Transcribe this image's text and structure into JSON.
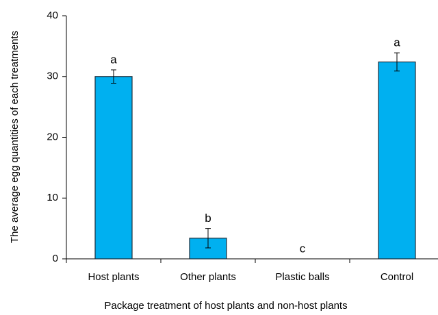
{
  "chart_data": {
    "type": "bar",
    "xlabel": "Package treatment of host plants and non-host plants",
    "ylabel": "The average egg quantities of each  treatments",
    "categories": [
      "Host plants",
      "Other plants",
      "Plastic balls",
      "Control"
    ],
    "values": [
      30,
      3.4,
      0,
      32.4
    ],
    "errors": [
      1.1,
      1.6,
      0,
      1.5
    ],
    "annotations": [
      "a",
      "b",
      "c",
      "a"
    ],
    "color": "#00b0f0",
    "ylim": [
      0,
      40
    ],
    "yticks": [
      0,
      10,
      20,
      30,
      40
    ],
    "grid": false
  }
}
